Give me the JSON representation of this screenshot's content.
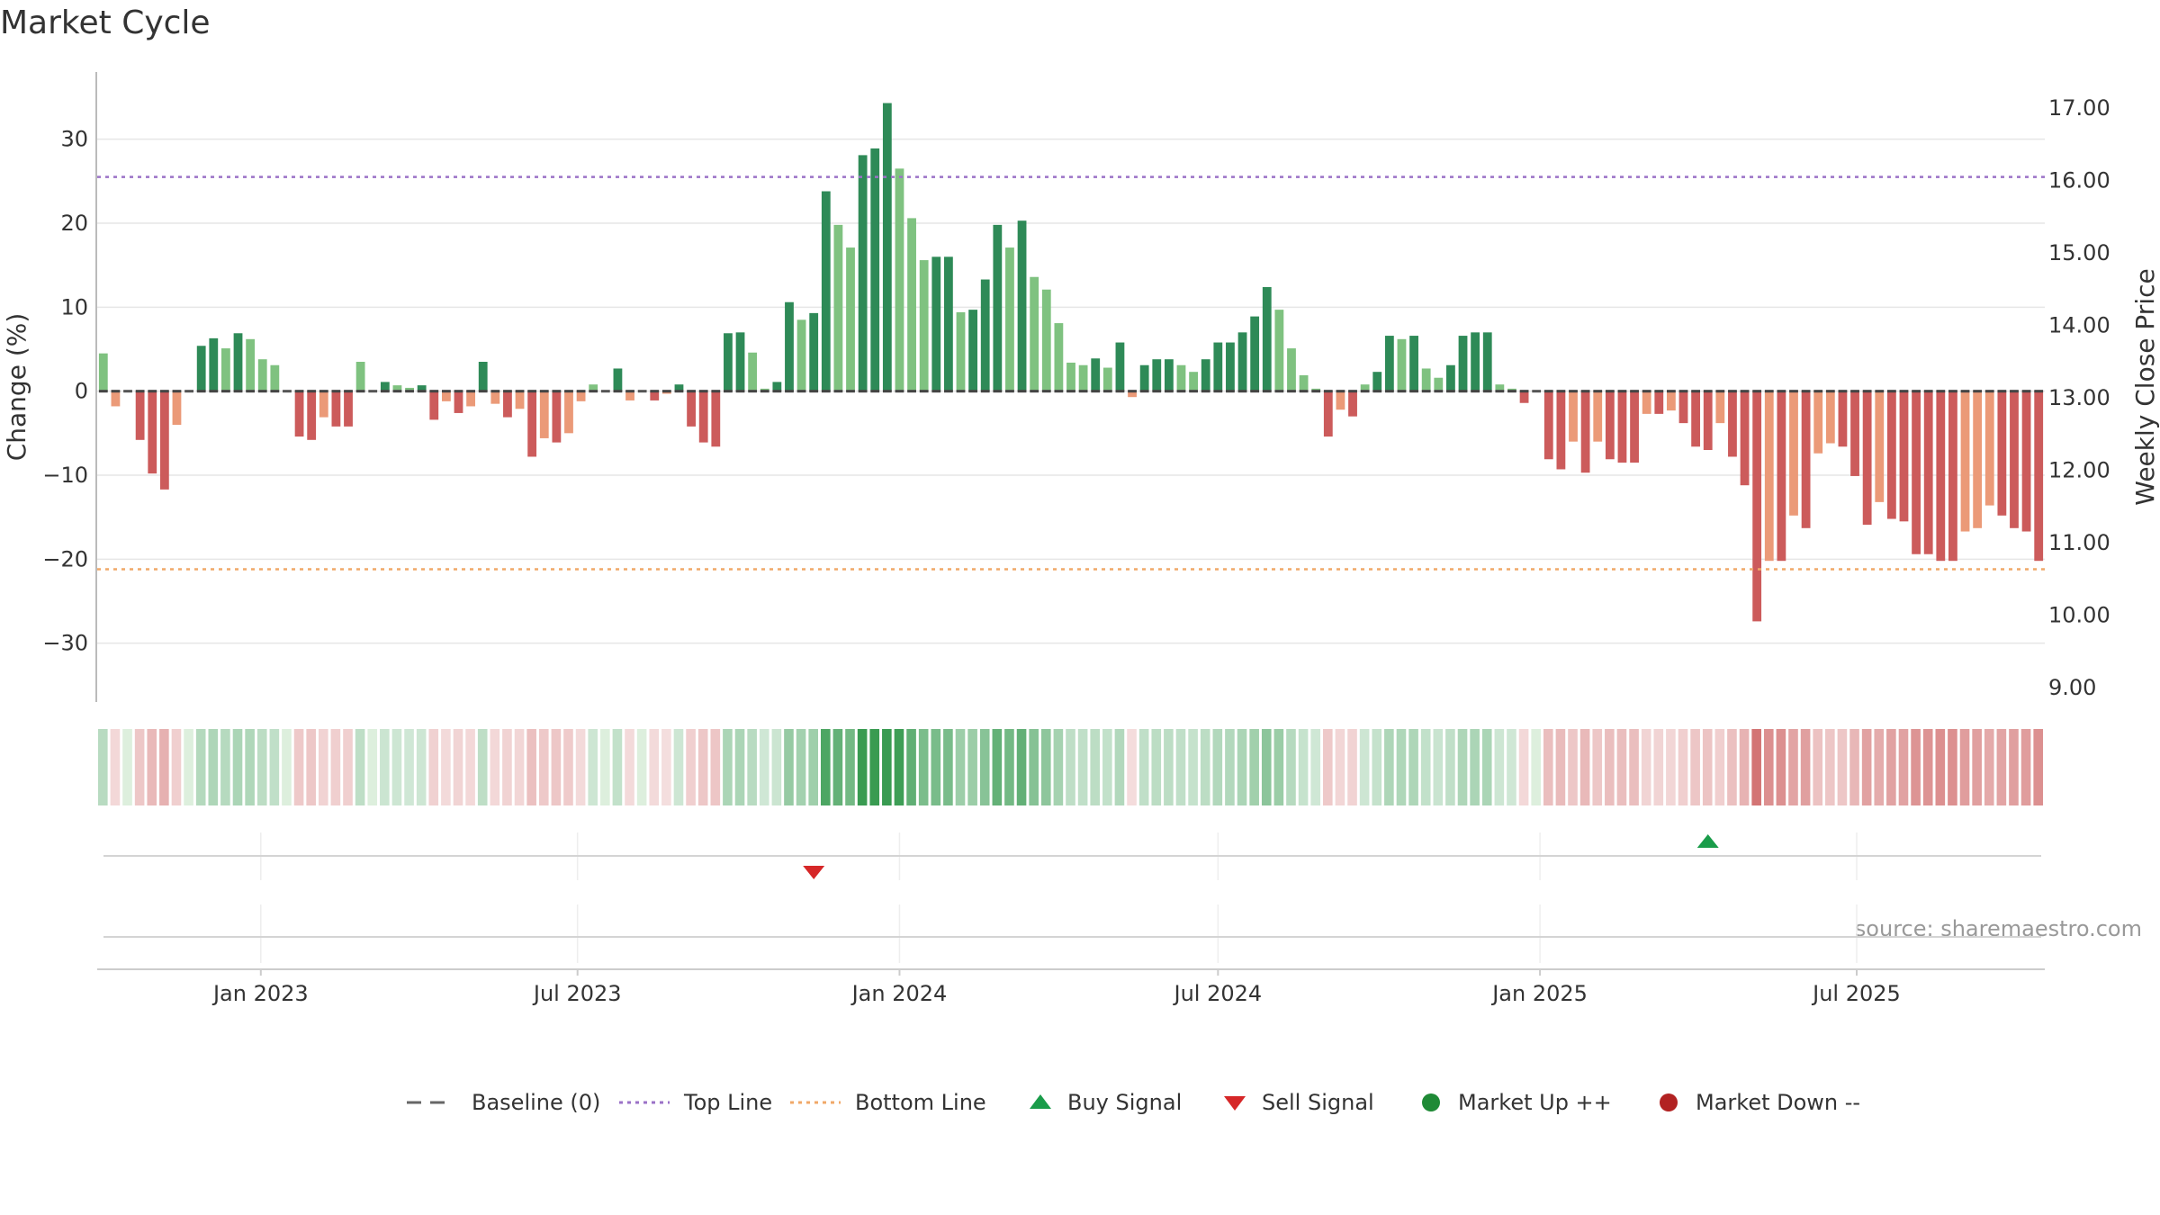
{
  "chart_data": {
    "type": "bar",
    "title": "Market Cycle",
    "ylabel": "Change (%)",
    "y2label": "Weekly Close Price",
    "ylim": [
      -37,
      38
    ],
    "y2lim": [
      8.8,
      17.5
    ],
    "yticks": [
      -30,
      -20,
      -10,
      0,
      10,
      20,
      30
    ],
    "y2ticks": [
      "9.00",
      "10.00",
      "11.00",
      "12.00",
      "13.00",
      "14.00",
      "15.00",
      "16.00",
      "17.00"
    ],
    "start_date": "2022-10-03",
    "x_ticks": [
      {
        "label": "Jan 2023",
        "date": "2023-01-01"
      },
      {
        "label": "Jul 2023",
        "date": "2023-07-01"
      },
      {
        "label": "Jan 2024",
        "date": "2024-01-01"
      },
      {
        "label": "Jul 2024",
        "date": "2024-07-01"
      },
      {
        "label": "Jan 2025",
        "date": "2025-01-01"
      },
      {
        "label": "Jul 2025",
        "date": "2025-07-01"
      }
    ],
    "top_line": 25.5,
    "bottom_line": -21.2,
    "values": [
      4.5,
      -1.8,
      0,
      -5.8,
      -9.8,
      -11.7,
      -4,
      0,
      5.4,
      6.3,
      5.1,
      6.9,
      6.2,
      3.8,
      3.1,
      0,
      -5.4,
      -5.8,
      -3.1,
      -4.2,
      -4.2,
      3.5,
      0,
      1.1,
      0.7,
      0.4,
      0.7,
      -3.4,
      -1.2,
      -2.6,
      -1.8,
      3.5,
      -1.5,
      -3.1,
      -2.1,
      -7.8,
      -5.6,
      -6.1,
      -5,
      -1.2,
      0.8,
      0,
      2.7,
      -1.1,
      0,
      -1.1,
      -0.3,
      0.8,
      -4.2,
      -6.1,
      -6.6,
      6.9,
      7,
      4.6,
      0.3,
      1.1,
      10.6,
      8.5,
      9.3,
      23.8,
      19.8,
      17.1,
      28.1,
      28.9,
      34.3,
      26.5,
      20.6,
      15.6,
      16,
      16,
      9.4,
      9.7,
      13.3,
      19.8,
      17.1,
      20.3,
      13.6,
      12.1,
      8.1,
      3.4,
      3.1,
      3.9,
      2.8,
      5.8,
      -0.7,
      3.1,
      3.8,
      3.8,
      3.1,
      2.3,
      3.8,
      5.8,
      5.8,
      7,
      8.9,
      12.4,
      9.7,
      5.1,
      1.9,
      0.3,
      -5.4,
      -2.2,
      -3,
      0.8,
      2.3,
      6.6,
      6.2,
      6.6,
      2.7,
      1.6,
      3.1,
      6.6,
      7,
      7,
      0.8,
      0.3,
      -1.4,
      0,
      -8.1,
      -9.3,
      -6,
      -9.7,
      -6,
      -8.1,
      -8.5,
      -8.5,
      -2.7,
      -2.7,
      -2.3,
      -3.8,
      -6.6,
      -7,
      -3.8,
      -7.8,
      -11.2,
      -27.4,
      -20.2,
      -20.2,
      -14.8,
      -16.3,
      -7.4,
      -6.2,
      -6.6,
      -10.1,
      -15.9,
      -13.2,
      -15.2,
      -15.5,
      -19.4,
      -19.4,
      -20.2,
      -20.2,
      -16.7,
      -16.3,
      -13.6,
      -14.8,
      -16.3,
      -16.7,
      -20.2
    ],
    "signals": [
      {
        "type": "sell",
        "date": "2023-11-13"
      },
      {
        "type": "buy",
        "date": "2025-04-07"
      }
    ],
    "legend": [
      {
        "label": "Baseline (0)",
        "symbol": "dash",
        "color": "#666666"
      },
      {
        "label": "Top Line",
        "symbol": "dotted",
        "color": "#9b72c7"
      },
      {
        "label": "Bottom Line",
        "symbol": "dotted",
        "color": "#f0a868"
      },
      {
        "label": "Buy Signal",
        "symbol": "triangle-up",
        "color": "#1a9c4a"
      },
      {
        "label": "Sell Signal",
        "symbol": "triangle-down",
        "color": "#d62728"
      },
      {
        "label": "Market Up ++",
        "symbol": "circle",
        "color": "#1f8a36"
      },
      {
        "label": "Market Down --",
        "symbol": "circle",
        "color": "#b22222"
      }
    ],
    "source": "source: sharemaestro.com",
    "colors": {
      "up_strong": "#2e8a57",
      "up_weak": "#7fc280",
      "down_strong": "#cc5b5b",
      "down_weak": "#eb9a78",
      "top_line": "#9b72c7",
      "bottom_line": "#f0a868"
    }
  }
}
